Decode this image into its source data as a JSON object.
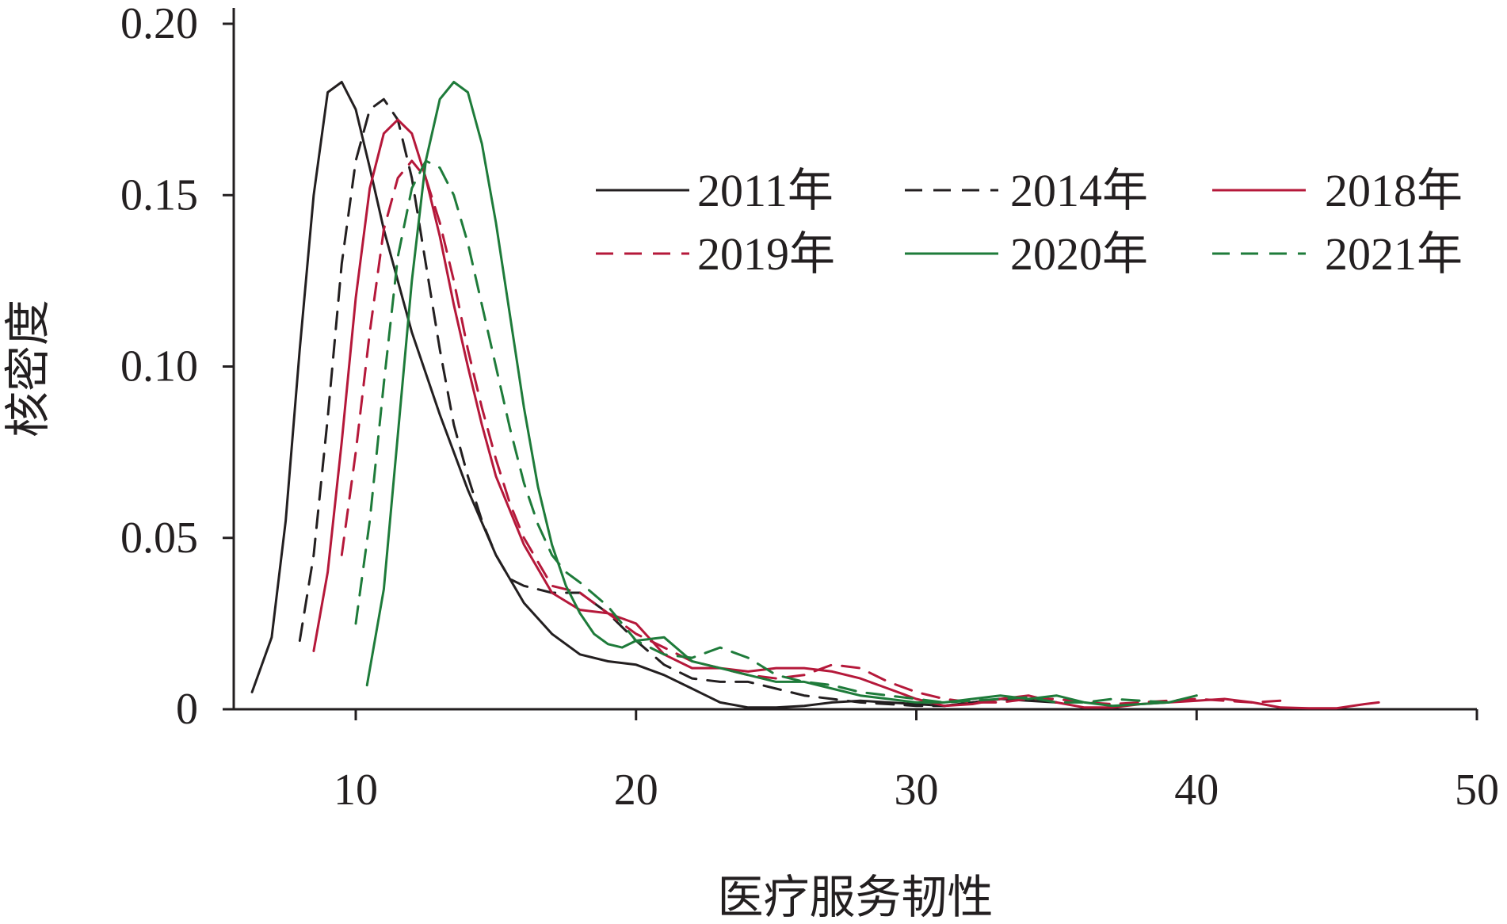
{
  "chart_data": {
    "type": "line",
    "xlabel": "医疗服务韧性",
    "ylabel": "核密度",
    "xlim": [
      5.7,
      50
    ],
    "ylim": [
      0,
      0.2
    ],
    "x_ticks": [
      10,
      20,
      30,
      40,
      50
    ],
    "x_tick_labels": [
      "10",
      "20",
      "30",
      "40",
      "50"
    ],
    "y_ticks": [
      0,
      0.05,
      0.1,
      0.15,
      0.2
    ],
    "y_tick_labels": [
      "0",
      "0.05",
      "0.10",
      "0.15",
      "0.20"
    ],
    "grid": false,
    "legend_position": "top-right",
    "series": [
      {
        "name": "2011年",
        "color": "#231f20",
        "dash": "solid",
        "x": [
          6.3,
          7.0,
          7.5,
          8.0,
          8.5,
          9.0,
          9.5,
          10.0,
          10.5,
          11.0,
          11.5,
          12.0,
          13.0,
          14.0,
          15.0,
          16.0,
          17.0,
          18.0,
          19.0,
          20.0,
          21.0,
          22.0,
          23.0,
          24.0,
          25.0,
          26.0,
          27.0,
          28.0,
          29.0,
          30.0,
          31.0,
          32.0,
          33.0,
          34.0,
          35.0
        ],
        "y": [
          0.005,
          0.021,
          0.055,
          0.105,
          0.15,
          0.18,
          0.183,
          0.175,
          0.158,
          0.14,
          0.125,
          0.11,
          0.086,
          0.064,
          0.045,
          0.031,
          0.022,
          0.016,
          0.014,
          0.013,
          0.01,
          0.006,
          0.002,
          0.0005,
          0.0005,
          0.001,
          0.002,
          0.0025,
          0.002,
          0.0015,
          0.001,
          0.002,
          0.003,
          0.0025,
          0.002
        ]
      },
      {
        "name": "2014年",
        "color": "#231f20",
        "dash": "dashed",
        "x": [
          8.0,
          8.5,
          9.0,
          9.5,
          10.0,
          10.5,
          11.0,
          11.5,
          12.0,
          12.5,
          13.0,
          13.5,
          14.0,
          14.5,
          15.0,
          15.5,
          16.0,
          17.0,
          18.0,
          19.0,
          20.0,
          21.0,
          22.0,
          23.0,
          24.0,
          25.0,
          26.0,
          27.0,
          28.0,
          29.0,
          30.0,
          31.0,
          32.0,
          33.0,
          34.0,
          35.0
        ],
        "y": [
          0.02,
          0.045,
          0.085,
          0.13,
          0.16,
          0.175,
          0.178,
          0.172,
          0.155,
          0.13,
          0.105,
          0.083,
          0.068,
          0.055,
          0.045,
          0.038,
          0.036,
          0.034,
          0.034,
          0.028,
          0.02,
          0.013,
          0.009,
          0.008,
          0.008,
          0.006,
          0.004,
          0.003,
          0.002,
          0.0015,
          0.001,
          0.001,
          0.002,
          0.003,
          0.003,
          0.002
        ]
      },
      {
        "name": "2018年",
        "color": "#b5183a",
        "dash": "solid",
        "x": [
          8.5,
          9.0,
          9.5,
          10.0,
          10.5,
          11.0,
          11.5,
          12.0,
          12.5,
          13.0,
          13.5,
          14.0,
          14.5,
          15.0,
          16.0,
          17.0,
          18.0,
          19.0,
          20.0,
          21.0,
          22.0,
          23.0,
          24.0,
          25.0,
          26.0,
          27.0,
          28.0,
          29.0,
          30.0,
          31.0,
          32.0,
          33.0,
          34.0,
          35.0,
          36.0,
          37.0,
          38.0,
          39.0,
          40.0,
          41.0,
          42.0,
          43.0,
          44.0,
          45.0,
          46.0,
          46.5
        ],
        "y": [
          0.017,
          0.04,
          0.078,
          0.12,
          0.152,
          0.168,
          0.172,
          0.168,
          0.155,
          0.138,
          0.118,
          0.1,
          0.083,
          0.068,
          0.048,
          0.034,
          0.029,
          0.028,
          0.025,
          0.016,
          0.012,
          0.012,
          0.011,
          0.012,
          0.012,
          0.011,
          0.009,
          0.006,
          0.003,
          0.001,
          0.0015,
          0.003,
          0.004,
          0.002,
          0.0005,
          0.0005,
          0.0015,
          0.002,
          0.0025,
          0.003,
          0.002,
          0.0005,
          0.0003,
          0.0003,
          0.0015,
          0.002
        ]
      },
      {
        "name": "2019年",
        "color": "#b5183a",
        "dash": "dashed",
        "x": [
          9.5,
          10.0,
          10.5,
          11.0,
          11.5,
          12.0,
          12.5,
          13.0,
          13.5,
          14.0,
          14.5,
          15.0,
          15.5,
          16.0,
          17.0,
          18.0,
          19.0,
          20.0,
          21.0,
          22.0,
          23.0,
          24.0,
          25.0,
          26.0,
          27.0,
          28.0,
          29.0,
          30.0,
          31.0,
          32.0,
          33.0,
          34.0,
          35.0,
          36.0,
          37.0,
          38.0,
          39.0,
          40.0,
          41.0,
          42.0,
          43.0
        ],
        "y": [
          0.045,
          0.075,
          0.11,
          0.14,
          0.155,
          0.16,
          0.155,
          0.142,
          0.125,
          0.105,
          0.088,
          0.073,
          0.06,
          0.05,
          0.036,
          0.034,
          0.028,
          0.022,
          0.018,
          0.014,
          0.012,
          0.01,
          0.009,
          0.01,
          0.013,
          0.012,
          0.008,
          0.005,
          0.003,
          0.002,
          0.002,
          0.003,
          0.003,
          0.002,
          0.0015,
          0.002,
          0.0025,
          0.003,
          0.0025,
          0.002,
          0.0025
        ]
      },
      {
        "name": "2020年",
        "color": "#1e7b3a",
        "dash": "solid",
        "x": [
          10.4,
          11.0,
          11.5,
          12.0,
          12.5,
          13.0,
          13.5,
          14.0,
          14.5,
          15.0,
          15.5,
          16.0,
          16.5,
          17.0,
          17.5,
          18.0,
          18.5,
          19.0,
          19.5,
          20.0,
          21.0,
          22.0,
          23.0,
          24.0,
          25.0,
          26.0,
          27.0,
          28.0,
          29.0,
          30.0,
          31.0,
          32.0,
          33.0,
          34.0,
          35.0,
          36.0,
          37.0,
          38.0,
          39.0,
          40.0
        ],
        "y": [
          0.007,
          0.035,
          0.08,
          0.125,
          0.16,
          0.178,
          0.183,
          0.18,
          0.165,
          0.142,
          0.115,
          0.088,
          0.065,
          0.048,
          0.036,
          0.028,
          0.022,
          0.019,
          0.018,
          0.02,
          0.021,
          0.014,
          0.012,
          0.01,
          0.008,
          0.008,
          0.006,
          0.004,
          0.003,
          0.002,
          0.002,
          0.003,
          0.004,
          0.003,
          0.004,
          0.002,
          0.001,
          0.0015,
          0.002,
          0.004
        ]
      },
      {
        "name": "2021年",
        "color": "#1e7b3a",
        "dash": "dashed",
        "x": [
          10.0,
          10.5,
          11.0,
          11.5,
          12.0,
          12.5,
          13.0,
          13.5,
          14.0,
          14.5,
          15.0,
          15.5,
          16.0,
          16.5,
          17.0,
          17.5,
          18.0,
          19.0,
          20.0,
          21.0,
          22.0,
          23.0,
          24.0,
          25.0,
          26.0,
          27.0,
          28.0,
          29.0,
          30.0,
          31.0,
          32.0,
          33.0,
          34.0,
          35.0,
          36.0,
          37.0,
          38.0,
          39.0
        ],
        "y": [
          0.025,
          0.055,
          0.095,
          0.132,
          0.152,
          0.16,
          0.158,
          0.15,
          0.136,
          0.118,
          0.1,
          0.082,
          0.066,
          0.054,
          0.045,
          0.04,
          0.037,
          0.03,
          0.02,
          0.016,
          0.015,
          0.018,
          0.015,
          0.01,
          0.008,
          0.007,
          0.005,
          0.004,
          0.003,
          0.002,
          0.0025,
          0.003,
          0.0035,
          0.002,
          0.002,
          0.003,
          0.0025,
          0.002
        ]
      }
    ]
  }
}
